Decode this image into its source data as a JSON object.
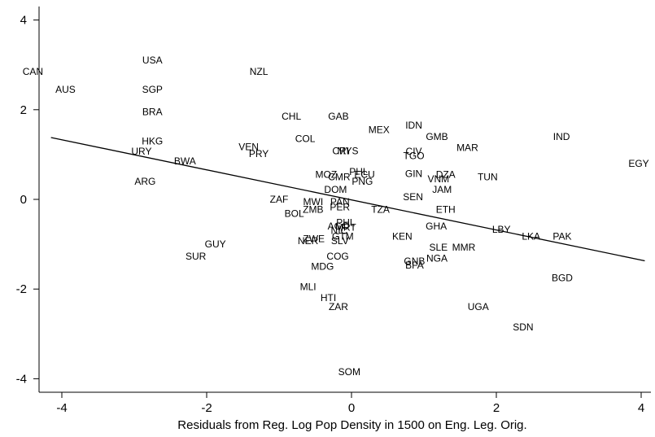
{
  "chart_data": {
    "type": "scatter",
    "title": "",
    "xlabel": "Residuals from Reg. Log Pop Density in 1500 on Eng. Leg. Orig.",
    "ylabel": "",
    "xlim": [
      -4.3,
      4.2
    ],
    "ylim": [
      -4.4,
      4.3
    ],
    "x_ticks": [
      -4,
      -2,
      0,
      2,
      4
    ],
    "y_ticks": [
      -4,
      -2,
      0,
      2,
      4
    ],
    "grid": false,
    "legend": "none",
    "fit_line": {
      "x": [
        -4.15,
        4.05
      ],
      "y": [
        1.38,
        -1.37
      ]
    },
    "points": [
      {
        "label": "USA",
        "x": -2.75,
        "y": 3.1
      },
      {
        "label": "CAN",
        "x": -4.4,
        "y": 2.85
      },
      {
        "label": "AUS",
        "x": -3.95,
        "y": 2.45
      },
      {
        "label": "SGP",
        "x": -2.75,
        "y": 2.45
      },
      {
        "label": "NZL",
        "x": -1.28,
        "y": 2.85
      },
      {
        "label": "BRA",
        "x": -2.75,
        "y": 1.95
      },
      {
        "label": "CHL",
        "x": -0.83,
        "y": 1.85
      },
      {
        "label": "GAB",
        "x": -0.18,
        "y": 1.85
      },
      {
        "label": "IDN",
        "x": 0.86,
        "y": 1.65
      },
      {
        "label": "MEX",
        "x": 0.38,
        "y": 1.55
      },
      {
        "label": "GMB",
        "x": 1.18,
        "y": 1.4
      },
      {
        "label": "IND",
        "x": 2.9,
        "y": 1.4
      },
      {
        "label": "COL",
        "x": -0.64,
        "y": 1.35
      },
      {
        "label": "HKG",
        "x": -2.75,
        "y": 1.3
      },
      {
        "label": "MAR",
        "x": 1.6,
        "y": 1.15
      },
      {
        "label": "VEN",
        "x": -1.42,
        "y": 1.17
      },
      {
        "label": "URY",
        "x": -2.9,
        "y": 1.07
      },
      {
        "label": "PRY",
        "x": -1.28,
        "y": 1.02
      },
      {
        "label": "CRI",
        "x": -0.15,
        "y": 1.08
      },
      {
        "label": "MYS",
        "x": -0.05,
        "y": 1.08
      },
      {
        "label": "CIV",
        "x": 0.86,
        "y": 1.07
      },
      {
        "label": "TGO",
        "x": 0.86,
        "y": 0.97
      },
      {
        "label": "BWA",
        "x": -2.3,
        "y": 0.85
      },
      {
        "label": "EGY",
        "x": 4.05,
        "y": 0.8
      },
      {
        "label": "PHL",
        "x": 0.1,
        "y": 0.62
      },
      {
        "label": "ECU",
        "x": 0.18,
        "y": 0.55
      },
      {
        "label": "MOZ",
        "x": -0.35,
        "y": 0.55
      },
      {
        "label": "GIN",
        "x": 0.86,
        "y": 0.57
      },
      {
        "label": "DZA",
        "x": 1.3,
        "y": 0.55
      },
      {
        "label": "TUN",
        "x": 1.88,
        "y": 0.5
      },
      {
        "label": "CMR",
        "x": -0.17,
        "y": 0.5
      },
      {
        "label": "VNM",
        "x": 1.2,
        "y": 0.45
      },
      {
        "label": "ARG",
        "x": -2.85,
        "y": 0.4
      },
      {
        "label": "PNG",
        "x": 0.15,
        "y": 0.4
      },
      {
        "label": "JAM",
        "x": 1.25,
        "y": 0.22
      },
      {
        "label": "DOM",
        "x": -0.22,
        "y": 0.22
      },
      {
        "label": "SEN",
        "x": 0.85,
        "y": 0.05
      },
      {
        "label": "ZAF",
        "x": -1.0,
        "y": 0.0
      },
      {
        "label": "MWI",
        "x": -0.53,
        "y": -0.05
      },
      {
        "label": "PAN",
        "x": -0.16,
        "y": -0.05
      },
      {
        "label": "PER",
        "x": -0.16,
        "y": -0.17
      },
      {
        "label": "ZMB",
        "x": -0.53,
        "y": -0.23
      },
      {
        "label": "TZA",
        "x": 0.4,
        "y": -0.23
      },
      {
        "label": "ETH",
        "x": 1.3,
        "y": -0.23
      },
      {
        "label": "BOL",
        "x": -0.79,
        "y": -0.32
      },
      {
        "label": "PHL",
        "x": -0.08,
        "y": -0.52
      },
      {
        "label": "GHA",
        "x": 1.17,
        "y": -0.6
      },
      {
        "label": "AGO",
        "x": -0.18,
        "y": -0.6
      },
      {
        "label": "MRT",
        "x": -0.08,
        "y": -0.63
      },
      {
        "label": "NIC",
        "x": -0.17,
        "y": -0.7
      },
      {
        "label": "LBY",
        "x": 2.07,
        "y": -0.67
      },
      {
        "label": "KEN",
        "x": 0.7,
        "y": -0.83
      },
      {
        "label": "LKA",
        "x": 2.48,
        "y": -0.83
      },
      {
        "label": "PAK",
        "x": 2.91,
        "y": -0.83
      },
      {
        "label": "GTM",
        "x": -0.12,
        "y": -0.83
      },
      {
        "label": "ZWE",
        "x": -0.52,
        "y": -0.88
      },
      {
        "label": "NER",
        "x": -0.6,
        "y": -0.93
      },
      {
        "label": "SLV",
        "x": -0.16,
        "y": -0.93
      },
      {
        "label": "GUY",
        "x": -1.88,
        "y": -1.0
      },
      {
        "label": "SLE",
        "x": 1.2,
        "y": -1.07
      },
      {
        "label": "MMR",
        "x": 1.55,
        "y": -1.07
      },
      {
        "label": "SUR",
        "x": -2.15,
        "y": -1.27
      },
      {
        "label": "COG",
        "x": -0.19,
        "y": -1.27
      },
      {
        "label": "NGA",
        "x": 1.18,
        "y": -1.32
      },
      {
        "label": "GNB",
        "x": 0.87,
        "y": -1.38
      },
      {
        "label": "BFA",
        "x": 0.87,
        "y": -1.47
      },
      {
        "label": "MDG",
        "x": -0.4,
        "y": -1.5
      },
      {
        "label": "BGD",
        "x": 2.91,
        "y": -1.75
      },
      {
        "label": "MLI",
        "x": -0.6,
        "y": -1.95
      },
      {
        "label": "HTI",
        "x": -0.32,
        "y": -2.2
      },
      {
        "label": "ZAR",
        "x": -0.18,
        "y": -2.4
      },
      {
        "label": "UGA",
        "x": 1.75,
        "y": -2.4
      },
      {
        "label": "SDN",
        "x": 2.37,
        "y": -2.85
      },
      {
        "label": "SOM",
        "x": -0.03,
        "y": -3.85
      }
    ]
  }
}
